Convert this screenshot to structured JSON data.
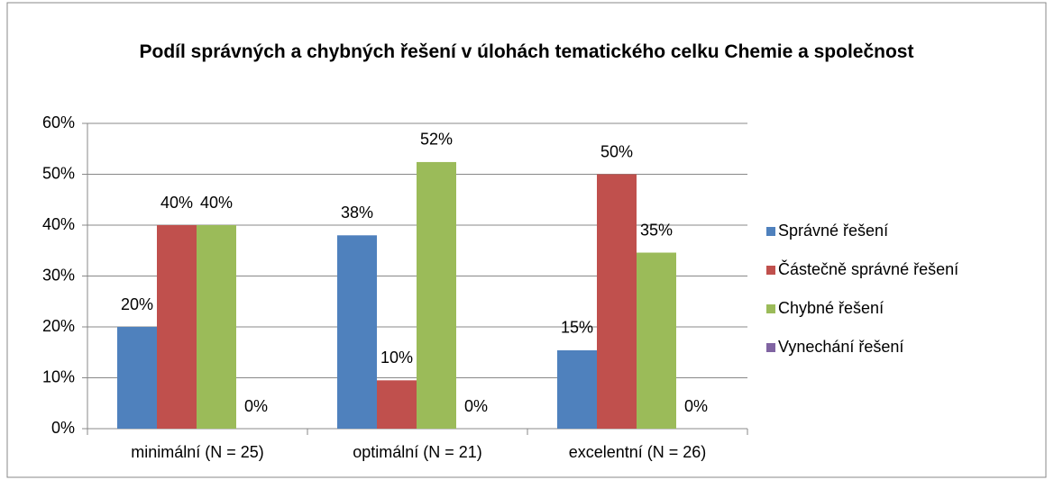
{
  "chart_data": {
    "type": "bar",
    "title": "Podíl správných a chybných řešení v úlohách tematického celku Chemie a společnost",
    "categories": [
      "minimální (N = 25)",
      "optimální (N = 21)",
      "excelentní (N = 26)"
    ],
    "series": [
      {
        "name": "Správné řešení",
        "color": "#4f81bd",
        "values": [
          20,
          38,
          15.4
        ],
        "value_labels": [
          "20%",
          "38%",
          "15%"
        ]
      },
      {
        "name": "Částečně správné řešení",
        "color": "#c0504d",
        "values": [
          40,
          9.5,
          50
        ],
        "value_labels": [
          "40%",
          "10%",
          "50%"
        ]
      },
      {
        "name": "Chybné řešení",
        "color": "#9bbb59",
        "values": [
          40,
          52.4,
          34.6
        ],
        "value_labels": [
          "40%",
          "52%",
          "35%"
        ]
      },
      {
        "name": "Vynechání řešení",
        "color": "#8064a2",
        "values": [
          0,
          0,
          0
        ],
        "value_labels": [
          "0%",
          "0%",
          "0%"
        ]
      }
    ],
    "ylim": [
      0,
      60
    ],
    "yticks": [
      {
        "value": 0,
        "label": "0%"
      },
      {
        "value": 10,
        "label": "10%"
      },
      {
        "value": 20,
        "label": "20%"
      },
      {
        "value": 30,
        "label": "30%"
      },
      {
        "value": 40,
        "label": "40%"
      },
      {
        "value": 50,
        "label": "50%"
      },
      {
        "value": 60,
        "label": "60%"
      }
    ],
    "grid": true,
    "legend": "right"
  }
}
